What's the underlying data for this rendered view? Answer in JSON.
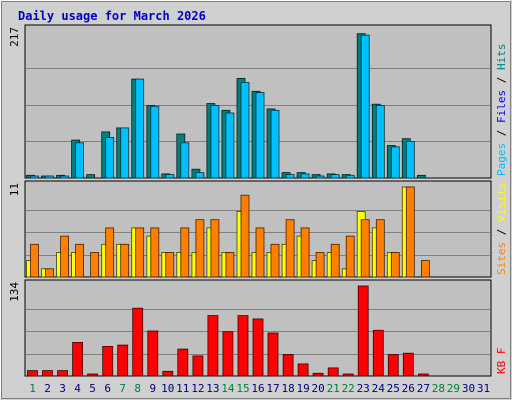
{
  "chart_data": {
    "type": "bar",
    "title": "Daily usage for March 2026",
    "categories": [
      "1",
      "2",
      "3",
      "4",
      "5",
      "6",
      "7",
      "8",
      "9",
      "10",
      "11",
      "12",
      "13",
      "14",
      "15",
      "16",
      "17",
      "18",
      "19",
      "20",
      "21",
      "22",
      "23",
      "24",
      "25",
      "26",
      "27",
      "28",
      "29",
      "30",
      "31"
    ],
    "weekend_days": [
      "1",
      "7",
      "8",
      "14",
      "15",
      "21",
      "22",
      "28",
      "29"
    ],
    "grid": true,
    "colors": {
      "title": "#0000cc",
      "pages": "#008080",
      "files": "#00c0ff",
      "sites": "#ff8000",
      "visits": "#ffff00",
      "kbytes": "#ff0000",
      "weekday_label": "#000080",
      "weekend_label": "#008040",
      "panel_bg": "#c0c0c0",
      "frame_bg": "#d0d0d0"
    },
    "panels": [
      {
        "id": "hits",
        "ymax": 217,
        "ymax_label": "217",
        "legend": [
          {
            "text": "Pages",
            "color": "#00c0ff"
          },
          {
            "text": " / ",
            "color": "#000000"
          },
          {
            "text": "Files",
            "color": "#0000ff"
          },
          {
            "text": " / ",
            "color": "#000000"
          },
          {
            "text": "Hits",
            "color": "#008080"
          }
        ],
        "series": [
          {
            "key": "pages",
            "color": "#008080",
            "values": [
              4,
              3,
              4,
              56,
              5,
              68,
              74,
              146,
              107,
              6,
              65,
              13,
              110,
              100,
              147,
              128,
              102,
              8,
              8,
              5,
              6,
              5,
              213,
              109,
              48,
              58,
              4,
              0,
              0,
              0,
              0
            ]
          },
          {
            "key": "files",
            "color": "#00c0ff",
            "values": [
              3,
              2,
              3,
              52,
              0,
              60,
              74,
              146,
              106,
              5,
              52,
              8,
              107,
              96,
              141,
              126,
              100,
              5,
              6,
              3,
              5,
              4,
              211,
              107,
              46,
              54,
              0,
              0,
              0,
              0,
              0
            ]
          }
        ]
      },
      {
        "id": "sites",
        "ymax": 11,
        "ymax_label": "11",
        "legend": [
          {
            "text": "Sites",
            "color": "#ff8000"
          },
          {
            "text": " / ",
            "color": "#000000"
          },
          {
            "text": "Visits",
            "color": "#ffff00"
          }
        ],
        "series": [
          {
            "key": "visits",
            "color": "#ffff00",
            "values": [
              2,
              1,
              3,
              3,
              0,
              4,
              4,
              6,
              5,
              3,
              3,
              3,
              6,
              3,
              8,
              3,
              3,
              4,
              5,
              2,
              3,
              1,
              8,
              6,
              3,
              11,
              0,
              0,
              0,
              0,
              0
            ]
          },
          {
            "key": "sites",
            "color": "#ff8000",
            "values": [
              4,
              1,
              5,
              4,
              3,
              6,
              4,
              6,
              6,
              3,
              6,
              7,
              7,
              3,
              10,
              6,
              4,
              7,
              6,
              3,
              4,
              5,
              7,
              7,
              3,
              11,
              2,
              0,
              0,
              0,
              0
            ]
          }
        ]
      },
      {
        "id": "kbytes",
        "ymax": 134,
        "ymax_label": "134",
        "legend": [
          {
            "text": "KB F",
            "color": "#ff0000"
          }
        ],
        "series": [
          {
            "key": "kbytes",
            "color": "#ff0000",
            "values": [
              8,
              8,
              8,
              50,
              3,
              44,
              46,
              101,
              67,
              7,
              40,
              30,
              90,
              66,
              90,
              85,
              64,
              32,
              18,
              4,
              12,
              3,
              134,
              68,
              32,
              34,
              2,
              0,
              0,
              0,
              0
            ]
          }
        ]
      }
    ]
  }
}
